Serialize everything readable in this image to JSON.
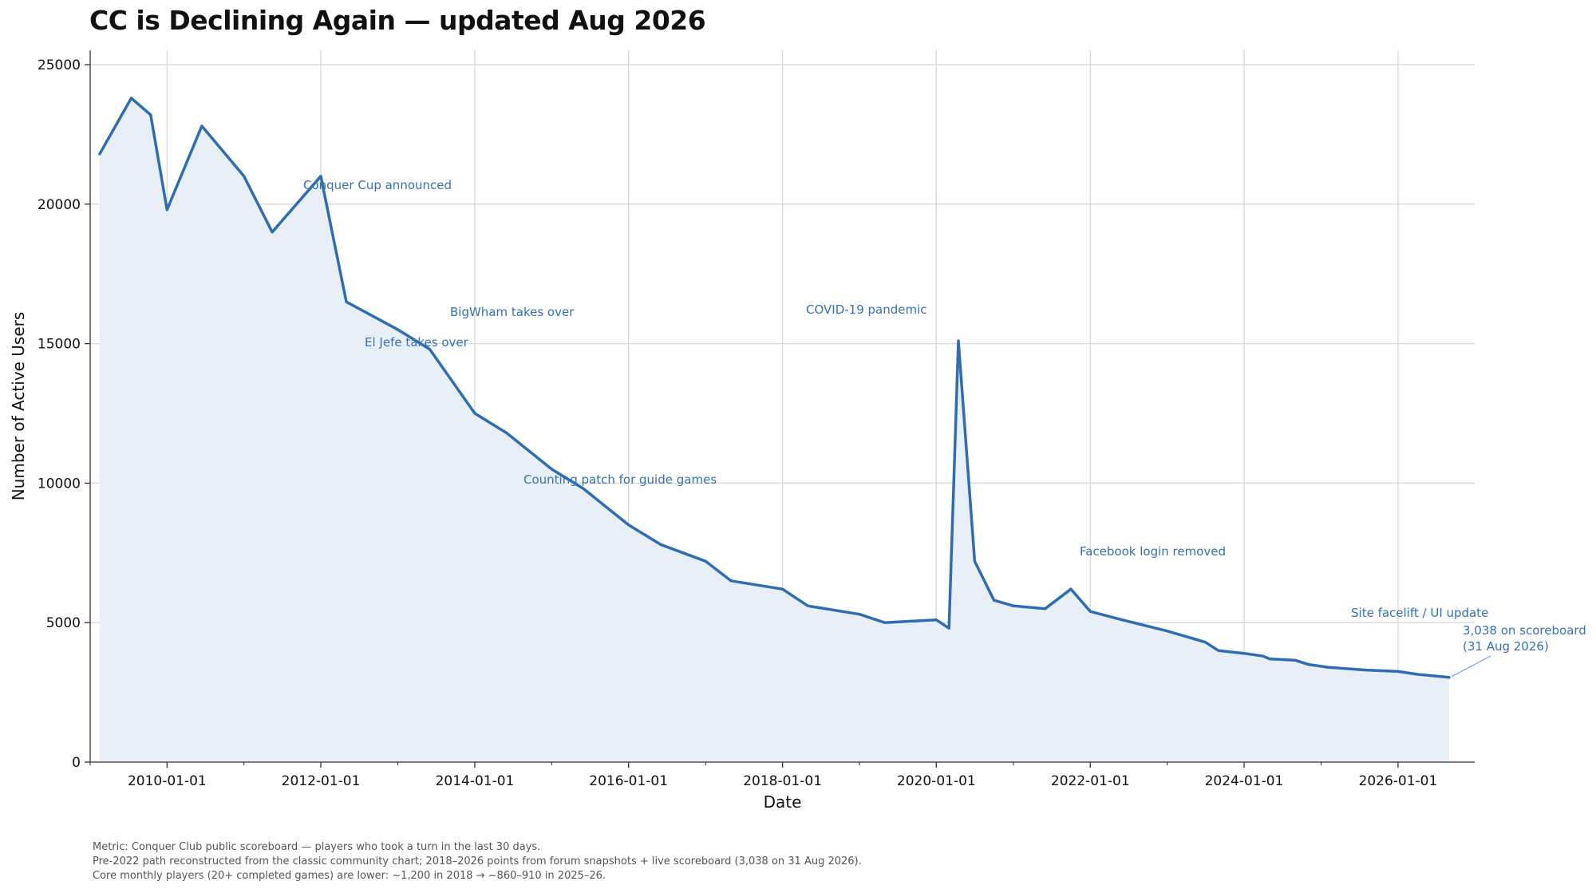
{
  "chart_data": {
    "type": "area",
    "title": "CC is Declining Again  —  updated Aug 2026",
    "xlabel": "Date",
    "ylabel": "Number of Active Users",
    "xlim": [
      "2009-01-01",
      "2026-12-31"
    ],
    "ylim": [
      0,
      25000
    ],
    "x_ticks": [
      "2010-01-01",
      "2012-01-01",
      "2014-01-01",
      "2016-01-01",
      "2018-01-01",
      "2020-01-01",
      "2022-01-01",
      "2024-01-01",
      "2026-01-01"
    ],
    "y_ticks": [
      0,
      5000,
      10000,
      15000,
      20000,
      25000
    ],
    "grid": true,
    "colors": {
      "line": "#2f6db3",
      "fill": "#e9eff7",
      "annotation": "#3471b6",
      "grid": "#d5d8dc"
    },
    "series": [
      {
        "x": [
          "2009-02-15",
          "2009-07-15",
          "2009-10-15",
          "2010-01-01",
          "2010-06-15",
          "2011-01-01",
          "2011-05-15",
          "2012-01-01",
          "2012-05-01",
          "2013-01-01",
          "2013-06-01",
          "2014-01-01",
          "2014-06-01",
          "2015-01-01",
          "2015-06-01",
          "2016-01-01",
          "2016-06-01",
          "2017-01-01",
          "2017-05-01",
          "2018-01-01",
          "2018-05-01",
          "2019-01-01",
          "2019-05-01",
          "2020-01-01",
          "2020-03-01",
          "2020-04-15",
          "2020-07-01",
          "2020-10-01",
          "2021-01-01",
          "2021-06-01",
          "2021-10-01",
          "2022-01-01",
          "2022-06-01",
          "2023-01-01",
          "2023-07-01",
          "2023-09-01",
          "2024-01-01",
          "2024-04-01",
          "2024-05-01",
          "2024-09-01",
          "2024-11-01",
          "2025-02-01",
          "2025-08-01",
          "2026-01-01",
          "2026-04-01",
          "2026-08-31"
        ],
        "values": [
          21800,
          23800,
          23200,
          19800,
          22800,
          21000,
          19000,
          21000,
          16500,
          15500,
          14800,
          12500,
          11800,
          10500,
          9800,
          8500,
          7800,
          7200,
          6500,
          6200,
          5600,
          5300,
          5000,
          5100,
          4800,
          15100,
          7200,
          5800,
          5600,
          5500,
          6200,
          5400,
          5100,
          4700,
          4300,
          4000,
          3900,
          3800,
          3700,
          3650,
          3500,
          3400,
          3300,
          3250,
          3150,
          3038
        ]
      }
    ],
    "annotations": [
      {
        "text": "Conquer Cup announced"
      },
      {
        "text": "BigWham takes over"
      },
      {
        "text": "El Jefe takes over"
      },
      {
        "text": "COVID-19 pandemic"
      },
      {
        "text": "Counting patch for guide games"
      },
      {
        "text": "Facebook login removed"
      },
      {
        "text": "Site facelift / UI update"
      },
      {
        "text": "3,038 on scoreboard"
      },
      {
        "text": "(31 Aug 2026)"
      }
    ]
  },
  "footnotes": [
    "Metric: Conquer Club public scoreboard — players who took a turn in the last 30 days.",
    "Pre-2022 path reconstructed from the classic community chart; 2018–2026 points from forum snapshots + live scoreboard (3,038 on 31 Aug 2026).",
    "Core monthly players (20+ completed games) are lower: ~1,200 in 2018 → ~860–910 in 2025–26."
  ]
}
